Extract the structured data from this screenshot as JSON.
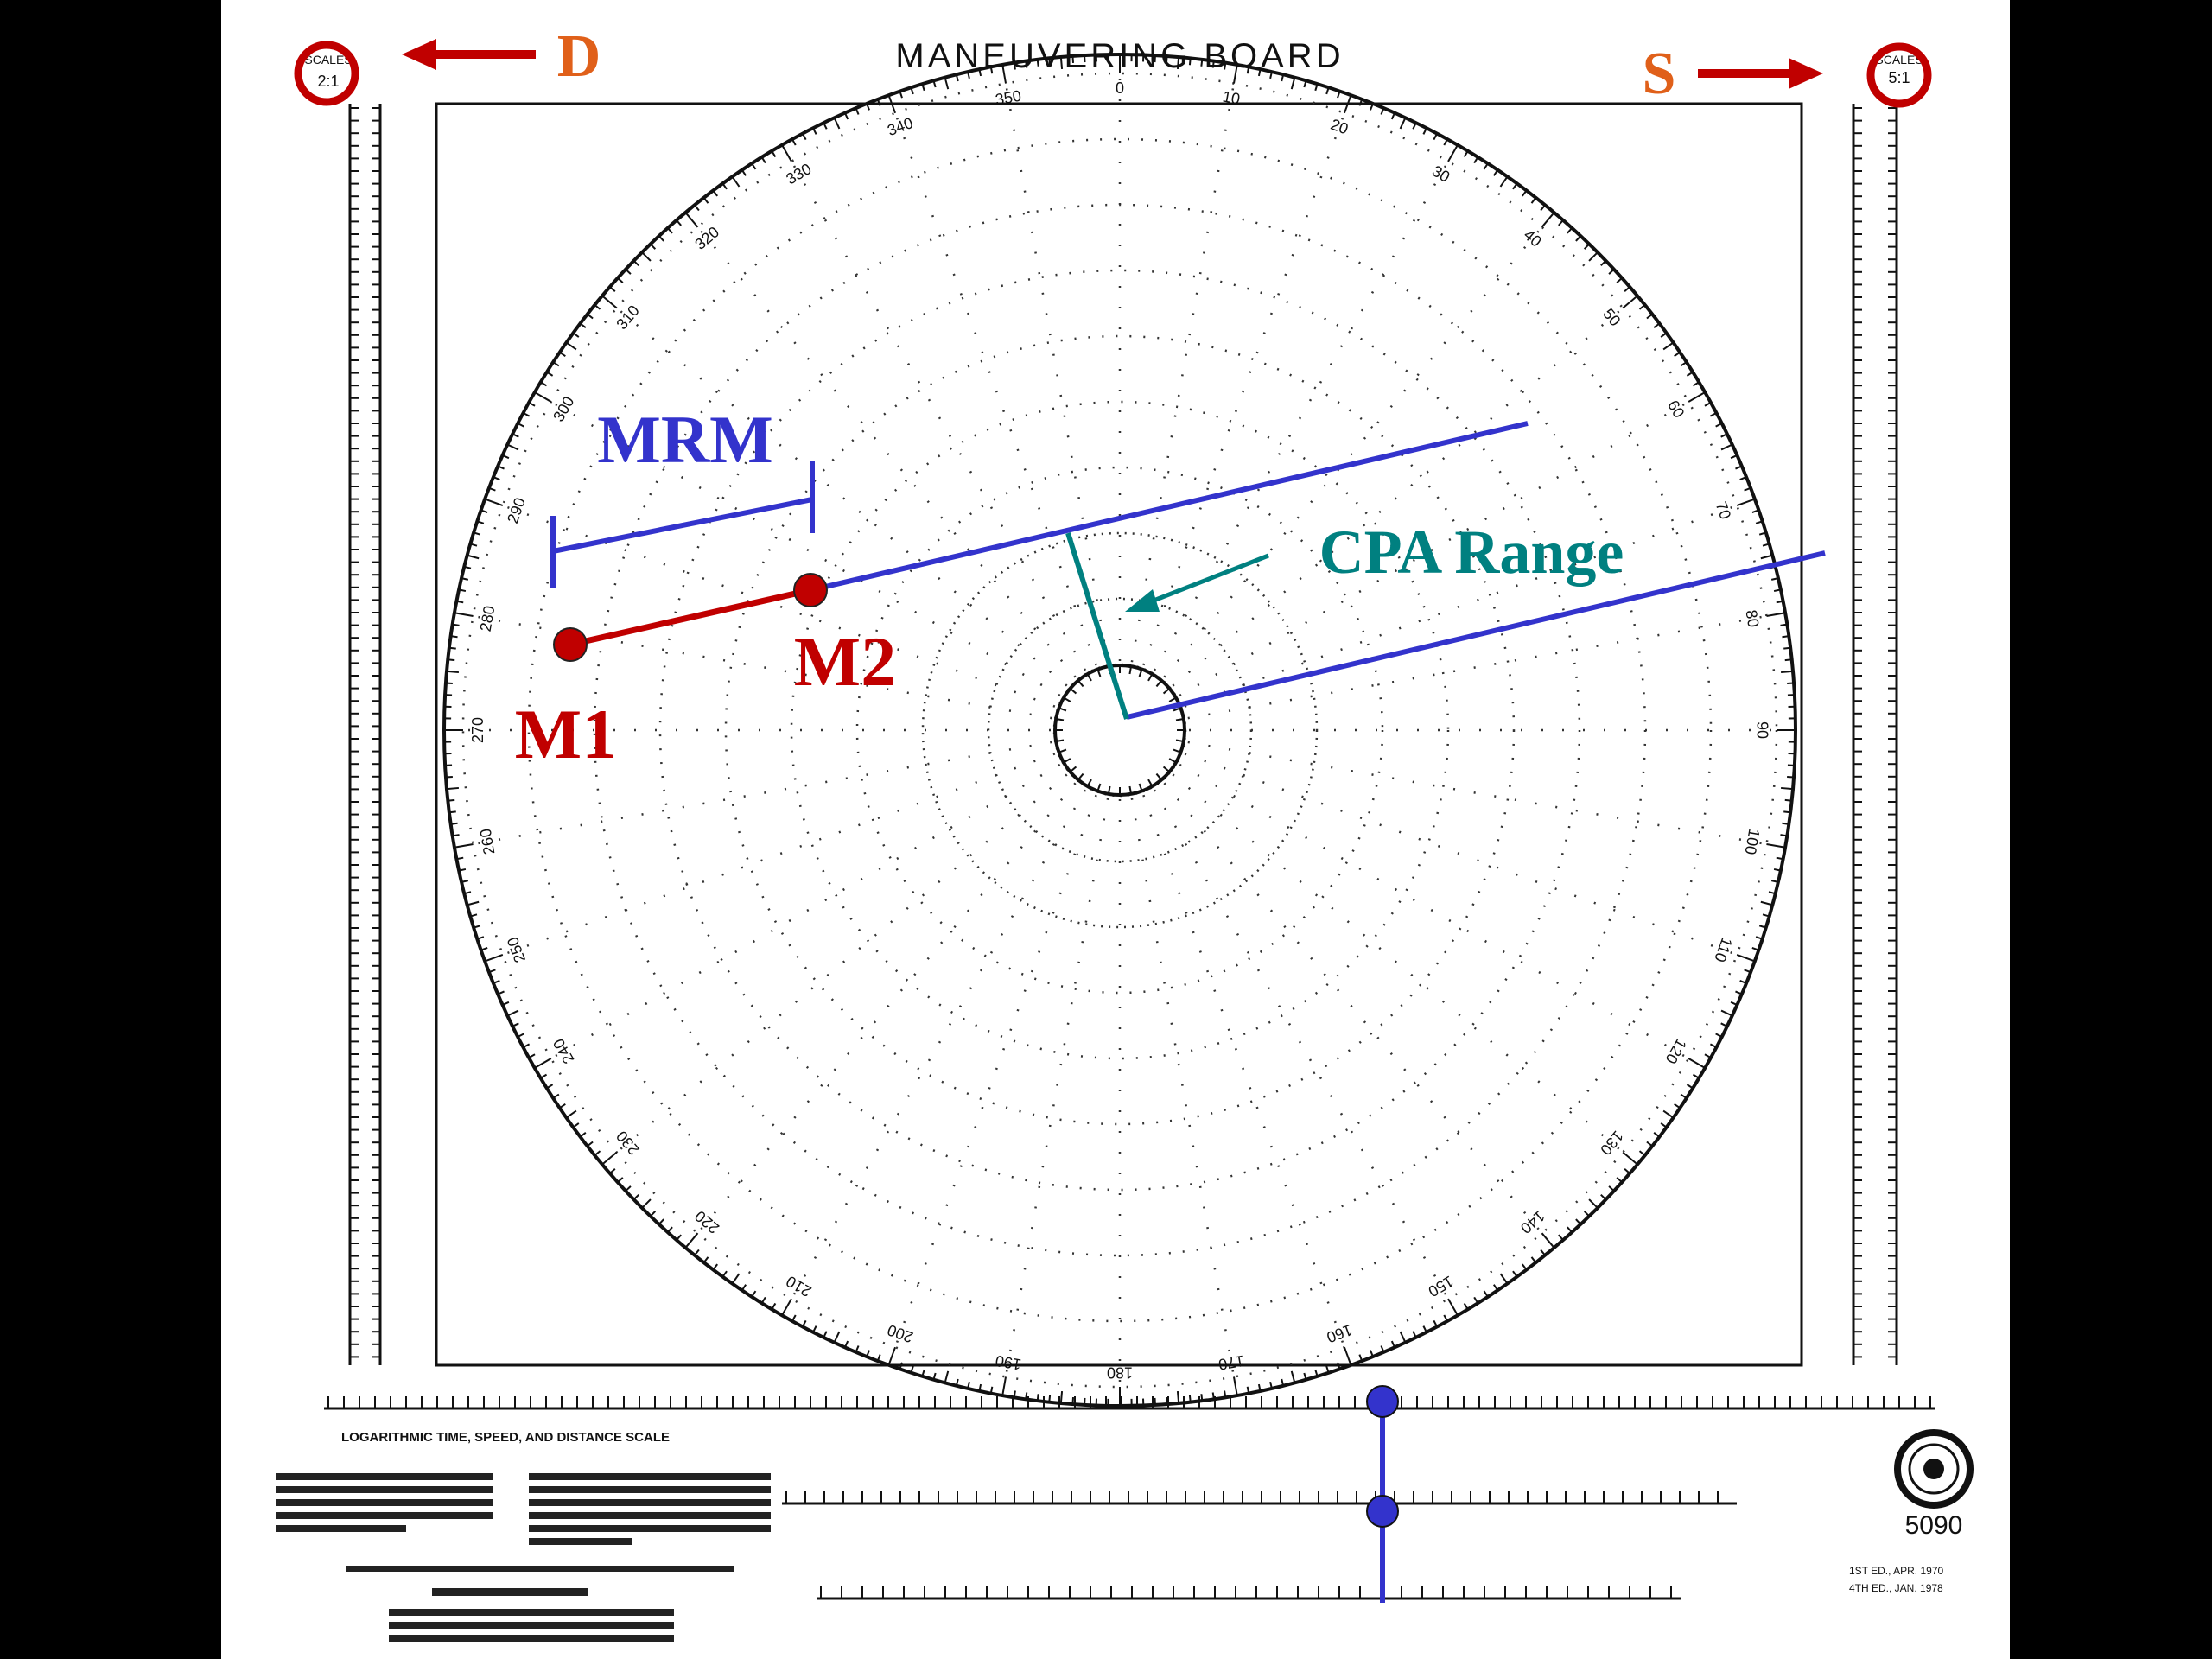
{
  "board": {
    "title": "MANEUVERING BOARD",
    "left_scale_label": "SCALES",
    "left_scale_value": "2:1",
    "right_scale_label": "SCALES",
    "right_scale_value": "5:1",
    "form_number": "5090",
    "log_scale_title": "LOGARITHMIC TIME, SPEED, AND DISTANCE SCALE",
    "edition_1": "1ST ED., APR. 1970",
    "edition_2": "4TH ED., JAN. 1978",
    "bearing_labels": [
      "0",
      "10",
      "20",
      "30",
      "40",
      "50",
      "60",
      "70",
      "80",
      "90",
      "100",
      "110",
      "120",
      "130",
      "140",
      "150",
      "160",
      "170",
      "180",
      "190",
      "200",
      "210",
      "220",
      "230",
      "240",
      "250",
      "260",
      "270",
      "280",
      "290",
      "300",
      "310",
      "320",
      "330",
      "340",
      "350"
    ]
  },
  "annotations": {
    "d_label": "D",
    "s_label": "S",
    "mrm_label": "MRM",
    "cpa_label": "CPA Range",
    "m1_label": "M1",
    "m2_label": "M2"
  },
  "colors": {
    "red": "#C00000",
    "blue": "#3333CC",
    "teal": "#008080",
    "orange": "#E0601A"
  }
}
